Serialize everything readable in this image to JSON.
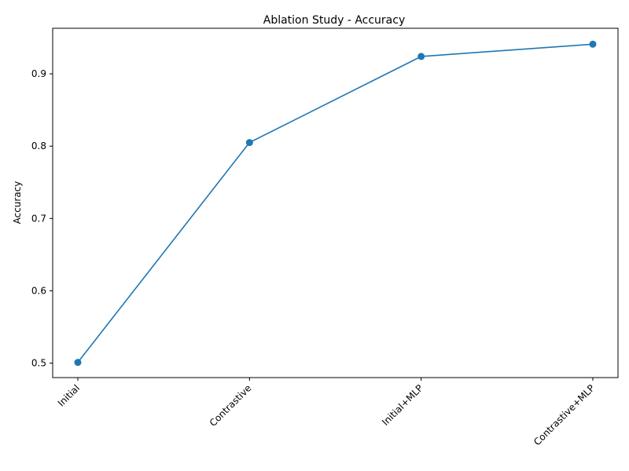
{
  "chart_data": {
    "type": "line",
    "title": "Ablation Study - Accuracy",
    "xlabel": "",
    "ylabel": "Accuracy",
    "categories": [
      "Initial",
      "Contrastive",
      "Initial+MLP",
      "Contrastive+MLP"
    ],
    "series": [
      {
        "values": [
          0.501,
          0.805,
          0.924,
          0.941
        ],
        "color": "#1f77b4",
        "marker": "circle"
      }
    ],
    "ylim": [
      0.48,
      0.963
    ],
    "yticks": [
      0.5,
      0.6,
      0.7,
      0.8,
      0.9
    ],
    "ytick_labels": [
      "0.5",
      "0.6",
      "0.7",
      "0.8",
      "0.9"
    ],
    "grid": false,
    "legend": "none"
  }
}
